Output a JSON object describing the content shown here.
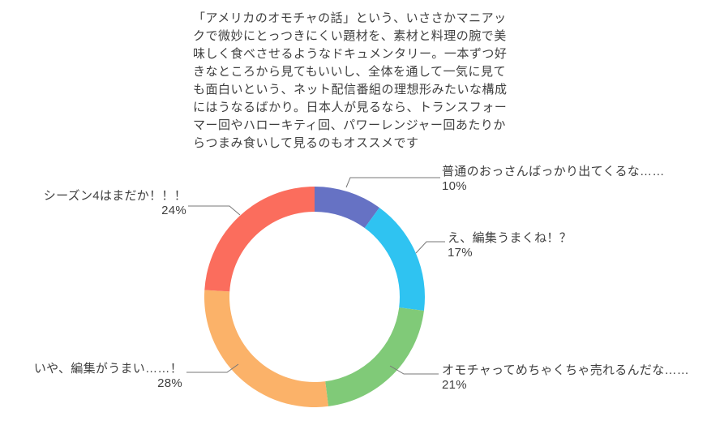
{
  "description": {
    "lines": [
      "「アメリカのオモチャの話」という、いささかマニアッ",
      "クで微妙にとっつきにくい題材を、素材と料理の腕で美",
      "味しく食べさせるようなドキュメンタリー。一本ずつ好",
      "きなところから見てもいいし、全体を通して一気に見て",
      "も面白いという、ネット配信番組の理想形みたいな構成",
      "にはうなるばかり。日本人が見るなら、トランスフォー",
      "マー回やハローキティ回、パワーレンジャー回あたりか",
      "らつまみ食いして見るのもオススメです"
    ]
  },
  "chart_data": {
    "type": "pie",
    "subtype": "donut",
    "title": "",
    "legend_position": "callout-labels",
    "inner_radius_ratio": 0.77,
    "start_angle_deg": 0,
    "direction": "clockwise-from-top",
    "categories": [
      "普通のおっさんばっかり出てくるな……",
      "え、編集うまくね！？",
      "オモチャってめちゃくちゃ売れるんだな……",
      "いや、編集がうまい……！",
      "シーズン4はまだか！！！"
    ],
    "values": [
      10,
      17,
      21,
      28,
      24
    ],
    "slices": [
      {
        "label": "普通のおっさんばっかり出てくるな……",
        "pct": "10%",
        "value": 10,
        "color": "#6672c4"
      },
      {
        "label": "え、編集うまくね！？",
        "pct": "17%",
        "value": 17,
        "color": "#2fc3f1"
      },
      {
        "label": "オモチャってめちゃくちゃ売れるんだな……",
        "pct": "21%",
        "value": 21,
        "color": "#80ca78"
      },
      {
        "label": "いや、編集がうまい……！",
        "pct": "28%",
        "value": 28,
        "color": "#fbb269"
      },
      {
        "label": "シーズン4はまだか！！！",
        "pct": "24%",
        "value": 24,
        "color": "#fb6d5d"
      }
    ],
    "colors": [
      "#6672c4",
      "#2fc3f1",
      "#80ca78",
      "#fbb269",
      "#fb6d5d"
    ],
    "leader_line_color": "#777777",
    "text_color": "#3f3f3f",
    "background_color": "#ffffff"
  }
}
